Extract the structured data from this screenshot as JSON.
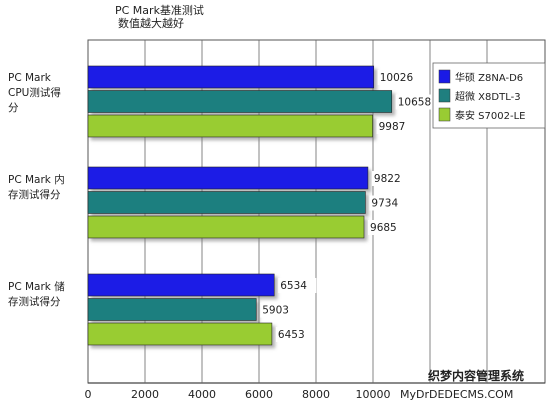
{
  "chart_data": {
    "type": "bar",
    "orientation": "horizontal",
    "title_lines": [
      "PC Mark基准测试",
      "数值越大越好"
    ],
    "categories": [
      [
        "PC Mark",
        "CPU测试得",
        "分"
      ],
      [
        "PC Mark 内",
        "存测试得分"
      ],
      [
        "PC Mark 储",
        "存测试得分"
      ]
    ],
    "series": [
      {
        "name": "华硕  Z8NA-D6",
        "color": "#1a1ae6",
        "values": [
          10026,
          9822,
          6534
        ]
      },
      {
        "name": "超微  X8DTL-3",
        "color": "#1f7f7f",
        "values": [
          10658,
          9734,
          5903
        ]
      },
      {
        "name": "泰安  S7002-LE",
        "color": "#99cc33",
        "values": [
          9987,
          9685,
          6453
        ]
      }
    ],
    "x_ticks": [
      0,
      2000,
      4000,
      6000,
      8000,
      10000
    ],
    "xlim": [
      0,
      14000
    ],
    "legend_position": "right",
    "grid": true
  },
  "watermark": {
    "line1": "织梦内容管理系统",
    "line2": "MyDrDEDECMS.COM"
  }
}
